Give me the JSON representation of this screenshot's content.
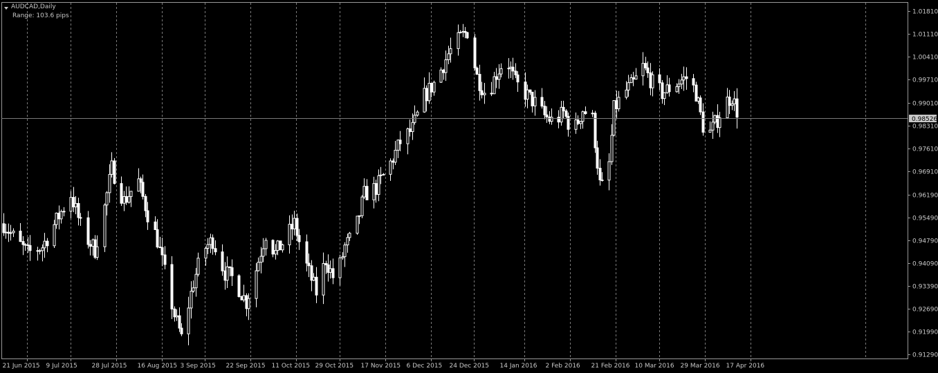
{
  "window": {
    "symbol_title": "AUDCAD,Daily",
    "range_label": "Range: 103.6 pips"
  },
  "colors": {
    "background": "#000000",
    "foreground": "#ffffff",
    "grid": "#9a9a9a",
    "axis_text": "#c8c8c8",
    "bid_line": "#7a7a7a",
    "bid_tag_bg": "#c8c8c8",
    "bid_tag_text": "#000000"
  },
  "chart_data": {
    "type": "candlestick",
    "symbol": "AUDCAD",
    "timeframe": "Daily",
    "title": "AUDCAD,Daily",
    "xlabel": "",
    "ylabel": "",
    "current_price": "0.98526",
    "grid": true,
    "ylim": [
      0.9117,
      1.0209
    ],
    "y_ticks": [
      "1.01810",
      "1.01110",
      "1.00410",
      "0.99710",
      "0.99010",
      "0.98310",
      "0.97610",
      "0.96910",
      "0.96190",
      "0.95490",
      "0.94790",
      "0.94090",
      "0.93390",
      "0.92690",
      "0.91990",
      "0.91290"
    ],
    "x_ticks": [
      "21 Jun 2015",
      "9 Jul 2015",
      "28 Jul 2015",
      "16 Aug 2015",
      "3 Sep 2015",
      "22 Sep 2015",
      "11 Oct 2015",
      "29 Oct 2015",
      "17 Nov 2015",
      "6 Dec 2015",
      "24 Dec 2015",
      "14 Jan 2016",
      "2 Feb 2016",
      "21 Feb 2016",
      "10 Mar 2016",
      "29 Mar 2016",
      "17 Apr 2016"
    ],
    "x_tick_days": [
      0,
      18,
      37,
      56,
      74,
      93,
      112,
      130,
      149,
      168,
      186,
      207,
      226,
      245,
      263,
      282,
      301
    ],
    "x_range_days": [
      0,
      349
    ],
    "close_anchors": [
      [
        0,
        0.953
      ],
      [
        5,
        0.948
      ],
      [
        10,
        0.944
      ],
      [
        16,
        0.946
      ],
      [
        22,
        0.954
      ],
      [
        28,
        0.962
      ],
      [
        33,
        0.95
      ],
      [
        38,
        0.945
      ],
      [
        42,
        0.958
      ],
      [
        45,
        0.97
      ],
      [
        50,
        0.96
      ],
      [
        56,
        0.966
      ],
      [
        60,
        0.956
      ],
      [
        64,
        0.948
      ],
      [
        67,
        0.938
      ],
      [
        71,
        0.925
      ],
      [
        74,
        0.918
      ],
      [
        79,
        0.935
      ],
      [
        83,
        0.945
      ],
      [
        87,
        0.948
      ],
      [
        92,
        0.938
      ],
      [
        96,
        0.936
      ],
      [
        101,
        0.929
      ],
      [
        105,
        0.939
      ],
      [
        109,
        0.95
      ],
      [
        113,
        0.944
      ],
      [
        117,
        0.948
      ],
      [
        121,
        0.953
      ],
      [
        125,
        0.942
      ],
      [
        130,
        0.932
      ],
      [
        134,
        0.942
      ],
      [
        138,
        0.935
      ],
      [
        142,
        0.946
      ],
      [
        146,
        0.95
      ],
      [
        150,
        0.962
      ],
      [
        155,
        0.964
      ],
      [
        160,
        0.97
      ],
      [
        165,
        0.978
      ],
      [
        170,
        0.982
      ],
      [
        175,
        0.992
      ],
      [
        180,
        0.997
      ],
      [
        185,
        1.005
      ],
      [
        190,
        1.01
      ],
      [
        193,
        1.012
      ],
      [
        197,
        0.998
      ],
      [
        201,
        0.992
      ],
      [
        205,
        0.999
      ],
      [
        209,
        1.004
      ],
      [
        213,
        0.996
      ],
      [
        217,
        0.993
      ],
      [
        221,
        0.99
      ],
      [
        225,
        0.986
      ],
      [
        229,
        0.984
      ],
      [
        233,
        0.987
      ],
      [
        237,
        0.981
      ],
      [
        241,
        0.988
      ],
      [
        245,
        0.985
      ],
      [
        248,
        0.965
      ],
      [
        251,
        0.963
      ],
      [
        254,
        0.988
      ],
      [
        258,
        0.993
      ],
      [
        262,
        0.996
      ],
      [
        266,
        1.001
      ],
      [
        270,
        0.996
      ],
      [
        274,
        0.993
      ],
      [
        278,
        0.995
      ],
      [
        282,
        0.997
      ],
      [
        285,
        0.998
      ],
      [
        288,
        0.993
      ],
      [
        291,
        0.983
      ],
      [
        294,
        0.981
      ],
      [
        297,
        0.985
      ],
      [
        300,
        0.99
      ],
      [
        303,
        0.992
      ],
      [
        306,
        0.9853
      ]
    ],
    "bar_count": 307,
    "bar_spacing_days": 1
  }
}
